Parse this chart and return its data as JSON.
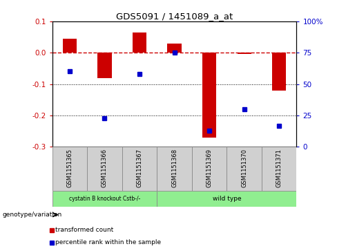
{
  "title": "GDS5091 / 1451089_a_at",
  "samples": [
    "GSM1151365",
    "GSM1151366",
    "GSM1151367",
    "GSM1151368",
    "GSM1151369",
    "GSM1151370",
    "GSM1151371"
  ],
  "transformed_count": [
    0.045,
    -0.08,
    0.065,
    0.03,
    -0.27,
    -0.005,
    -0.12
  ],
  "percentile_rank": [
    60,
    23,
    58,
    75,
    13,
    30,
    17
  ],
  "ylim_left": [
    -0.3,
    0.1
  ],
  "ylim_right": [
    0,
    100
  ],
  "yticks_left": [
    -0.3,
    -0.2,
    -0.1,
    0.0,
    0.1
  ],
  "yticks_right": [
    0,
    25,
    50,
    75,
    100
  ],
  "group1_label": "cystatin B knockout Cstb-/-",
  "group1_samples": [
    0,
    1,
    2
  ],
  "group2_label": "wild type",
  "group2_samples": [
    3,
    4,
    5,
    6
  ],
  "group_color": "#90EE90",
  "sample_box_color": "#d0d0d0",
  "bar_color": "#cc0000",
  "dot_color": "#0000cc",
  "hline_color": "#cc0000",
  "label_transformed": "transformed count",
  "label_percentile": "percentile rank within the sample",
  "genotype_label": "genotype/variation"
}
